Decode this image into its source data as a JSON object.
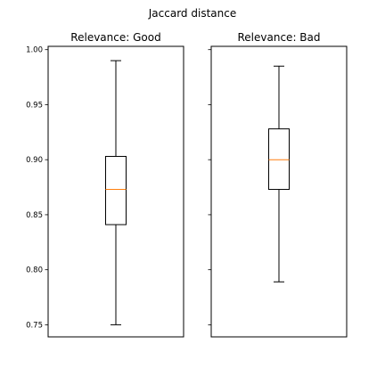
{
  "chart_data": {
    "type": "box",
    "title": "Jaccard distance",
    "ylim": [
      0.739,
      1.003
    ],
    "yticks": [
      {
        "value": 0.75,
        "label": "0.75"
      },
      {
        "value": 0.8,
        "label": "0.80"
      },
      {
        "value": 0.85,
        "label": "0.85"
      },
      {
        "value": 0.9,
        "label": "0.90"
      },
      {
        "value": 0.95,
        "label": "0.95"
      },
      {
        "value": 1.0,
        "label": "1.00"
      }
    ],
    "sharey": true,
    "grid": false,
    "panels": [
      {
        "title": "Relevance: Good",
        "whisker_low": 0.75,
        "q1": 0.841,
        "median": 0.873,
        "q3": 0.903,
        "whisker_high": 0.99
      },
      {
        "title": "Relevance: Bad",
        "whisker_low": 0.789,
        "q1": 0.873,
        "median": 0.9,
        "q3": 0.928,
        "whisker_high": 0.985
      }
    ],
    "colors": {
      "box": "#000000",
      "median": "#ff7f0e",
      "whisker": "#000000",
      "frame": "#000000"
    }
  }
}
